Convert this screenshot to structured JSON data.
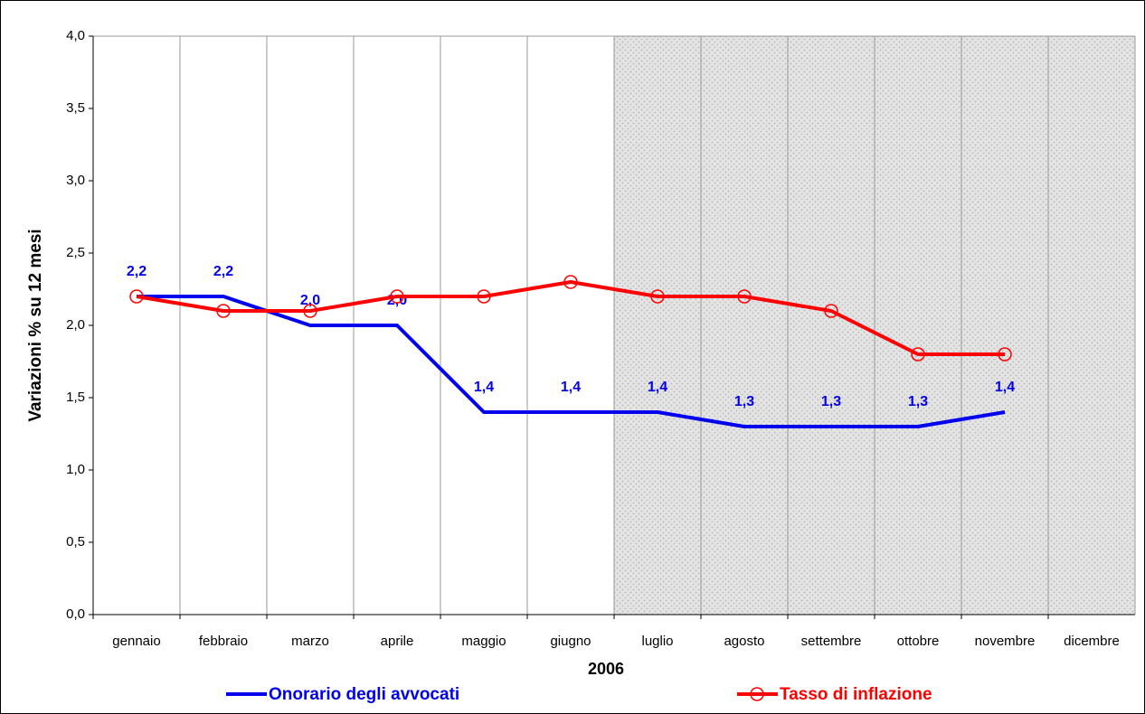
{
  "chart_data": {
    "type": "line",
    "y_label": "Variazioni % su 12 mesi",
    "x_label": "2006",
    "categories": [
      "gennaio",
      "febbraio",
      "marzo",
      "aprile",
      "maggio",
      "giugno",
      "luglio",
      "agosto",
      "settembre",
      "ottobre",
      "novembre",
      "dicembre"
    ],
    "series": [
      {
        "name": "Onorario degli avvocati",
        "color": "#0000ee",
        "values": [
          2.2,
          2.2,
          2.0,
          2.0,
          1.4,
          1.4,
          1.4,
          1.3,
          1.3,
          1.3,
          1.4,
          null
        ],
        "value_labels": [
          "2,2",
          "2,2",
          "2,0",
          "2,0",
          "1,4",
          "1,4",
          "1,4",
          "1,3",
          "1,3",
          "1,3",
          "1,4",
          null
        ]
      },
      {
        "name": "Tasso di inflazione",
        "color": "#ff0000",
        "marker": "circle",
        "values": [
          2.2,
          2.1,
          2.1,
          2.2,
          2.2,
          2.3,
          2.2,
          2.2,
          2.1,
          1.8,
          1.8,
          null
        ]
      }
    ],
    "ylim": [
      0,
      4
    ],
    "yticks": [
      {
        "value": 0,
        "label": "0,0"
      },
      {
        "value": 0.5,
        "label": "0,5"
      },
      {
        "value": 1,
        "label": "1,0"
      },
      {
        "value": 1.5,
        "label": "1,5"
      },
      {
        "value": 2,
        "label": "2,0"
      },
      {
        "value": 2.5,
        "label": "2,5"
      },
      {
        "value": 3,
        "label": "3,0"
      },
      {
        "value": 3.5,
        "label": "3,5"
      },
      {
        "value": 4,
        "label": "4,0"
      }
    ],
    "legend": "bottom"
  }
}
